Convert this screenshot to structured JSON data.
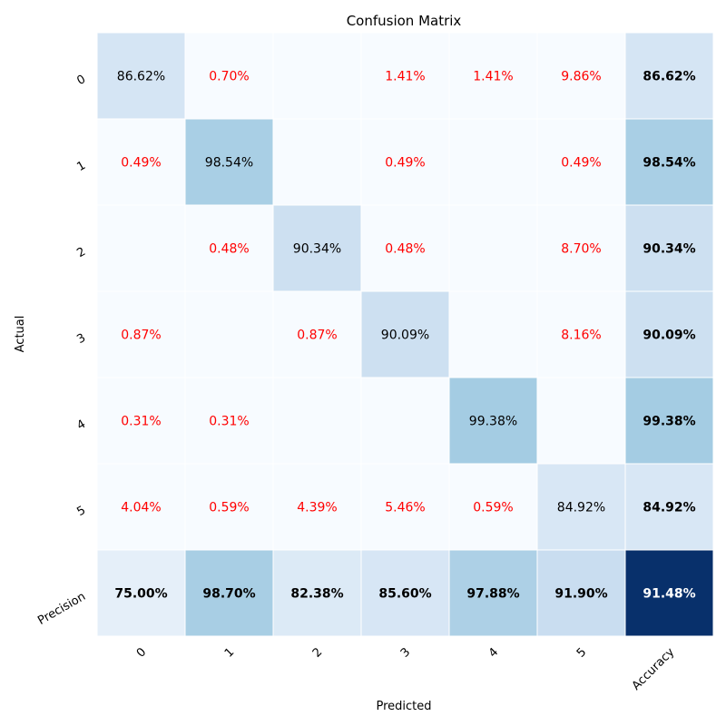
{
  "chart_data": {
    "type": "heatmap",
    "title": "Confusion Matrix",
    "xlabel": "Predicted",
    "ylabel": "Actual",
    "x_categories": [
      "0",
      "1",
      "2",
      "3",
      "4",
      "5",
      "Accuracy"
    ],
    "y_categories": [
      "0",
      "1",
      "2",
      "3",
      "4",
      "5",
      "Precision"
    ],
    "colormap": "Blues",
    "value_range": [
      0,
      100
    ],
    "diagonal_text_color": "#000000",
    "off_diagonal_text_color": "#ff0000",
    "summary_text_color": "#000000",
    "grid_line_color": "#ffffff",
    "cells": [
      [
        {
          "v": 86.62,
          "t": "86.62%"
        },
        {
          "v": 0.7,
          "t": "0.70%"
        },
        {
          "v": 0,
          "t": ""
        },
        {
          "v": 1.41,
          "t": "1.41%"
        },
        {
          "v": 1.41,
          "t": "1.41%"
        },
        {
          "v": 9.86,
          "t": "9.86%"
        },
        {
          "v": 86.62,
          "t": "86.62%"
        }
      ],
      [
        {
          "v": 0.49,
          "t": "0.49%"
        },
        {
          "v": 98.54,
          "t": "98.54%"
        },
        {
          "v": 0,
          "t": ""
        },
        {
          "v": 0.49,
          "t": "0.49%"
        },
        {
          "v": 0,
          "t": ""
        },
        {
          "v": 0.49,
          "t": "0.49%"
        },
        {
          "v": 98.54,
          "t": "98.54%"
        }
      ],
      [
        {
          "v": 0,
          "t": ""
        },
        {
          "v": 0.48,
          "t": "0.48%"
        },
        {
          "v": 90.34,
          "t": "90.34%"
        },
        {
          "v": 0.48,
          "t": "0.48%"
        },
        {
          "v": 0,
          "t": ""
        },
        {
          "v": 8.7,
          "t": "8.70%"
        },
        {
          "v": 90.34,
          "t": "90.34%"
        }
      ],
      [
        {
          "v": 0.87,
          "t": "0.87%"
        },
        {
          "v": 0,
          "t": ""
        },
        {
          "v": 0.87,
          "t": "0.87%"
        },
        {
          "v": 90.09,
          "t": "90.09%"
        },
        {
          "v": 0,
          "t": ""
        },
        {
          "v": 8.16,
          "t": "8.16%"
        },
        {
          "v": 90.09,
          "t": "90.09%"
        }
      ],
      [
        {
          "v": 0.31,
          "t": "0.31%"
        },
        {
          "v": 0.31,
          "t": "0.31%"
        },
        {
          "v": 0,
          "t": ""
        },
        {
          "v": 0,
          "t": ""
        },
        {
          "v": 99.38,
          "t": "99.38%"
        },
        {
          "v": 0,
          "t": ""
        },
        {
          "v": 99.38,
          "t": "99.38%"
        }
      ],
      [
        {
          "v": 4.04,
          "t": "4.04%"
        },
        {
          "v": 0.59,
          "t": "0.59%"
        },
        {
          "v": 4.39,
          "t": "4.39%"
        },
        {
          "v": 5.46,
          "t": "5.46%"
        },
        {
          "v": 0.59,
          "t": "0.59%"
        },
        {
          "v": 84.92,
          "t": "84.92%"
        },
        {
          "v": 84.92,
          "t": "84.92%"
        }
      ],
      [
        {
          "v": 75.0,
          "t": "75.00%"
        },
        {
          "v": 98.7,
          "t": "98.70%"
        },
        {
          "v": 82.38,
          "t": "82.38%"
        },
        {
          "v": 85.6,
          "t": "85.60%"
        },
        {
          "v": 97.88,
          "t": "97.88%"
        },
        {
          "v": 91.9,
          "t": "91.90%"
        },
        {
          "v": 91.48,
          "t": "91.48%"
        }
      ]
    ]
  }
}
